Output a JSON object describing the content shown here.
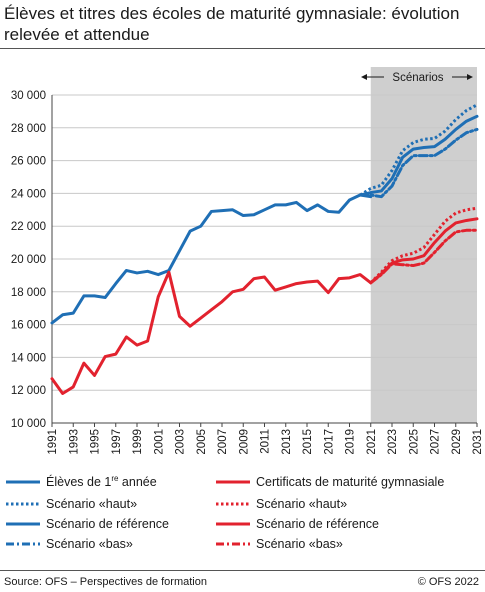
{
  "title": "Élèves et titres des écoles de maturité gymnasiale: évolution relevée et attendue",
  "scenario_label": "Scénarios",
  "source": "Source: OFS – Perspectives de formation",
  "copyright": "© OFS 2022",
  "colors": {
    "blue": "#1f6fb5",
    "red": "#e2222e",
    "shade": "#cfcfcf",
    "grid": "#c8c8c8"
  },
  "legend": {
    "eleves_first": "Élèves de 1",
    "eleves_sup": "re",
    "eleves_rest": " année",
    "blue_haut": "Scénario «haut»",
    "blue_ref": "Scénario de référence",
    "blue_bas": "Scénario «bas»",
    "certificats": "Certificats de maturité gymnasiale",
    "red_haut": "Scénario «haut»",
    "red_ref": "Scénario de référence",
    "red_bas": "Scénario «bas»"
  },
  "chart_data": {
    "type": "line",
    "title": "Élèves et titres des écoles de maturité gymnasiale: évolution relevée et attendue",
    "x_range": [
      1991,
      2031
    ],
    "x_ticks": [
      "1991",
      "1993",
      "1995",
      "1997",
      "1999",
      "2001",
      "2003",
      "2005",
      "2007",
      "2009",
      "2011",
      "2013",
      "2015",
      "2017",
      "2019",
      "2021",
      "2023",
      "2025",
      "2027",
      "2029",
      "2031"
    ],
    "y_range": [
      10000,
      30000
    ],
    "y_ticks": [
      "10 000",
      "12 000",
      "14 000",
      "16 000",
      "18 000",
      "20 000",
      "22 000",
      "24 000",
      "26 000",
      "28 000",
      "30 000"
    ],
    "grid": true,
    "scenario_shading": [
      2021,
      2031
    ],
    "series": [
      {
        "name": "Élèves de 1re année",
        "color": "blue",
        "style": "solid",
        "x": [
          1991,
          1992,
          1993,
          1994,
          1995,
          1996,
          1997,
          1998,
          1999,
          2000,
          2001,
          2002,
          2003,
          2004,
          2005,
          2006,
          2007,
          2008,
          2009,
          2010,
          2011,
          2012,
          2013,
          2014,
          2015,
          2016,
          2017,
          2018,
          2019,
          2020,
          2021
        ],
        "y": [
          16100,
          16600,
          16700,
          17750,
          17750,
          17650,
          18500,
          19300,
          19150,
          19250,
          19050,
          19300,
          20500,
          21700,
          22000,
          22900,
          22950,
          23000,
          22650,
          22700,
          23000,
          23300,
          23300,
          23450,
          22950,
          23300,
          22900,
          22850,
          23600,
          23900,
          23800
        ]
      },
      {
        "name": "Scénario «haut»",
        "color": "blue",
        "style": "dotted",
        "x": [
          2020,
          2021,
          2022,
          2023,
          2024,
          2025,
          2026,
          2027,
          2028,
          2029,
          2030,
          2031
        ],
        "y": [
          23900,
          24300,
          24500,
          25400,
          26600,
          27100,
          27300,
          27350,
          27800,
          28500,
          29050,
          29400
        ]
      },
      {
        "name": "Scénario de référence",
        "color": "blue",
        "style": "solid",
        "x": [
          2020,
          2021,
          2022,
          2023,
          2024,
          2025,
          2026,
          2027,
          2028,
          2029,
          2030,
          2031
        ],
        "y": [
          23900,
          24050,
          24150,
          24900,
          26200,
          26700,
          26800,
          26850,
          27300,
          27900,
          28400,
          28700
        ]
      },
      {
        "name": "Scénario «bas»",
        "color": "blue",
        "style": "dashdot",
        "x": [
          2020,
          2021,
          2022,
          2023,
          2024,
          2025,
          2026,
          2027,
          2028,
          2029,
          2030,
          2031
        ],
        "y": [
          23900,
          23900,
          23800,
          24450,
          25700,
          26300,
          26300,
          26300,
          26700,
          27250,
          27700,
          27900
        ]
      },
      {
        "name": "Certificats de maturité gymnasiale",
        "color": "red",
        "style": "solid",
        "x": [
          1991,
          1992,
          1993,
          1994,
          1995,
          1996,
          1997,
          1998,
          1999,
          2000,
          2001,
          2002,
          2003,
          2004,
          2005,
          2006,
          2007,
          2008,
          2009,
          2010,
          2011,
          2012,
          2013,
          2014,
          2015,
          2016,
          2017,
          2018,
          2019,
          2020,
          2021
        ],
        "y": [
          12700,
          11800,
          12200,
          13650,
          12900,
          14050,
          14200,
          15250,
          14750,
          15000,
          17700,
          19200,
          16500,
          15900,
          16400,
          16900,
          17400,
          18000,
          18150,
          18800,
          18900,
          18100,
          18300,
          18500,
          18600,
          18650,
          17950,
          18800,
          18850,
          19050,
          18550
        ]
      },
      {
        "name": "Scénario «haut»",
        "color": "red",
        "style": "dotted",
        "x": [
          2021,
          2022,
          2023,
          2024,
          2025,
          2026,
          2027,
          2028,
          2029,
          2030,
          2031
        ],
        "y": [
          18550,
          19200,
          19900,
          20200,
          20350,
          20700,
          21500,
          22300,
          22800,
          23000,
          23100
        ]
      },
      {
        "name": "Scénario de référence",
        "color": "red",
        "style": "solid",
        "x": [
          2021,
          2022,
          2023,
          2024,
          2025,
          2026,
          2027,
          2028,
          2029,
          2030,
          2031
        ],
        "y": [
          18550,
          19100,
          19750,
          19950,
          20000,
          20200,
          21000,
          21700,
          22200,
          22350,
          22450
        ]
      },
      {
        "name": "Scénario «bas»",
        "color": "red",
        "style": "dashdot",
        "x": [
          2021,
          2022,
          2023,
          2024,
          2025,
          2026,
          2027,
          2028,
          2029,
          2030,
          2031
        ],
        "y": [
          18550,
          19050,
          19700,
          19650,
          19600,
          19750,
          20400,
          21100,
          21650,
          21750,
          21750
        ]
      }
    ]
  }
}
